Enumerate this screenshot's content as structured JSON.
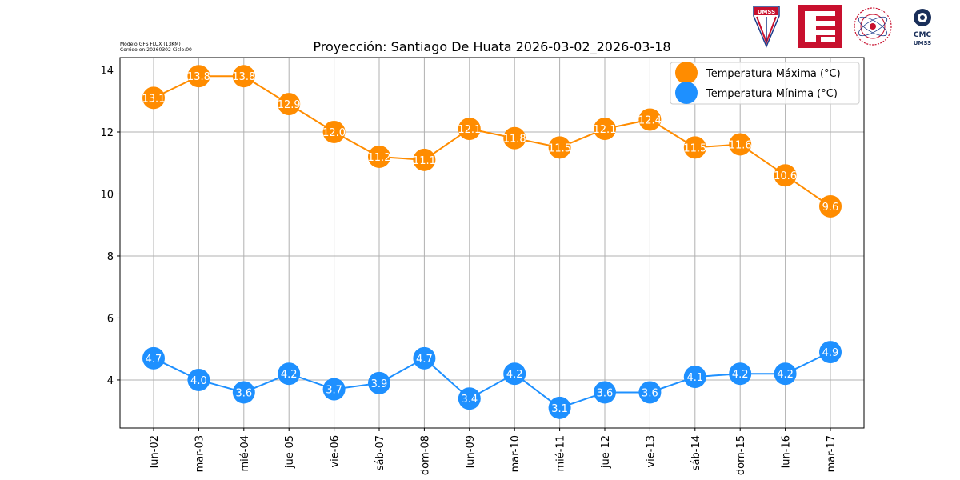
{
  "meta": {
    "model_line": "Modelo:GFS FLUX (13KM)",
    "run_line": "Corrido en:20260302 Ciclo:00"
  },
  "logos": {
    "umss_shield_text": "UMSS",
    "cmc_text": "CMC",
    "cmc_sub": "UMSS"
  },
  "chart_data": {
    "type": "line",
    "title": "Proyección: Santiago De Huata 2026-03-02_2026-03-18",
    "xlabel": "",
    "ylabel": "",
    "categories": [
      "lun-02",
      "mar-03",
      "mié-04",
      "jue-05",
      "vie-06",
      "sáb-07",
      "dom-08",
      "lun-09",
      "mar-10",
      "mié-11",
      "jue-12",
      "vie-13",
      "sáb-14",
      "dom-15",
      "lun-16",
      "mar-17"
    ],
    "yticks": [
      4,
      6,
      8,
      10,
      12,
      14
    ],
    "ylim": [
      2.45,
      14.4
    ],
    "grid": true,
    "legend_position": "top-right",
    "series": [
      {
        "name": "Temperatura Máxima  (°C)",
        "color": "#ff8c00",
        "values": [
          13.1,
          13.8,
          13.8,
          12.9,
          12.0,
          11.2,
          11.1,
          12.1,
          11.8,
          11.5,
          12.1,
          12.4,
          11.5,
          11.6,
          10.6,
          9.6
        ],
        "labels": [
          "13.1",
          "13.8",
          "13.8",
          "12.9",
          "12.0",
          "11.2",
          "11.1",
          "12.1",
          "11.8",
          "11.5",
          "12.1",
          "12.4",
          "11.5",
          "11.6",
          "10.6",
          "9.6"
        ]
      },
      {
        "name": "Temperatura Mínima  (°C)",
        "color": "#1e90ff",
        "values": [
          4.7,
          4.0,
          3.6,
          4.2,
          3.7,
          3.9,
          4.7,
          3.4,
          4.2,
          3.1,
          3.6,
          3.6,
          4.1,
          4.2,
          4.2,
          4.9
        ],
        "labels": [
          "4.7",
          "4.0",
          "3.6",
          "4.2",
          "3.7",
          "3.9",
          "4.7",
          "3.4",
          "4.2",
          "3.1",
          "3.6",
          "3.6",
          "4.1",
          "4.2",
          "4.2",
          "4.9"
        ]
      }
    ]
  }
}
